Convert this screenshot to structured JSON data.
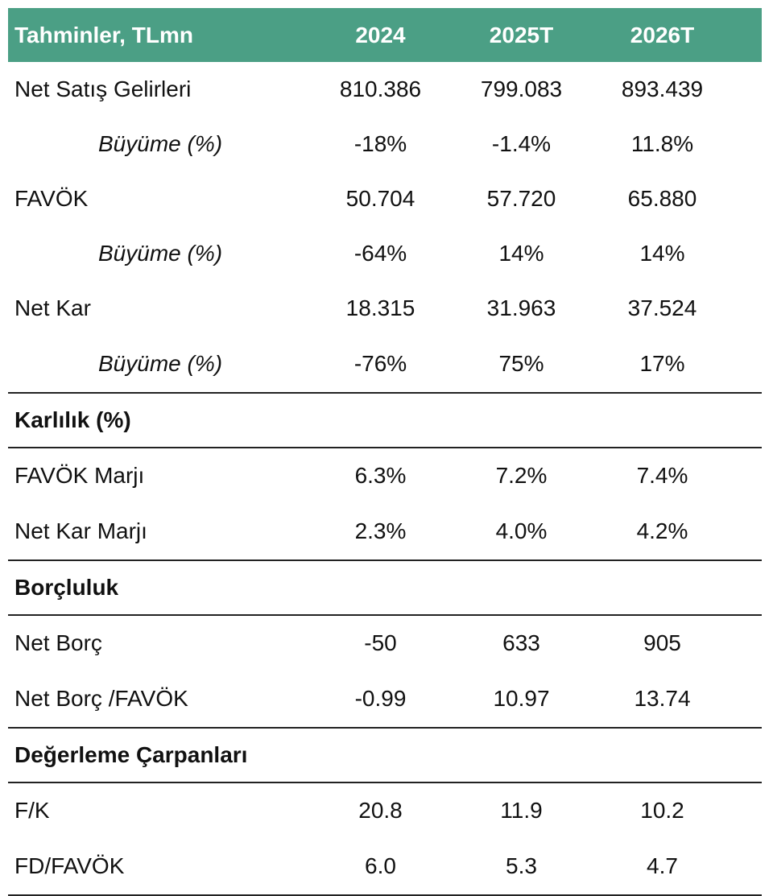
{
  "header": {
    "title": "Tahminler, TLmn",
    "columns": [
      "2024",
      "2025T",
      "2026T"
    ]
  },
  "sections": [
    {
      "title": "",
      "rows": [
        {
          "label": "Net Satış Gelirleri",
          "indent": false,
          "values": [
            "810.386",
            "799.083",
            "893.439"
          ]
        },
        {
          "label": "Büyüme (%)",
          "indent": true,
          "values": [
            "-18%",
            "-1.4%",
            "11.8%"
          ]
        },
        {
          "label": "FAVÖK",
          "indent": false,
          "values": [
            "50.704",
            "57.720",
            "65.880"
          ]
        },
        {
          "label": "Büyüme (%)",
          "indent": true,
          "values": [
            "-64%",
            "14%",
            "14%"
          ]
        },
        {
          "label": "Net Kar",
          "indent": false,
          "values": [
            "18.315",
            "31.963",
            "37.524"
          ]
        },
        {
          "label": "Büyüme (%)",
          "indent": true,
          "values": [
            "-76%",
            "75%",
            "17%"
          ]
        }
      ]
    },
    {
      "title": "Karlılık (%)",
      "rows": [
        {
          "label": "FAVÖK Marjı",
          "indent": false,
          "values": [
            "6.3%",
            "7.2%",
            "7.4%"
          ]
        },
        {
          "label": "Net Kar Marjı",
          "indent": false,
          "values": [
            "2.3%",
            "4.0%",
            "4.2%"
          ]
        }
      ]
    },
    {
      "title": "Borçluluk",
      "rows": [
        {
          "label": "Net Borç",
          "indent": false,
          "values": [
            "-50",
            "633",
            "905"
          ]
        },
        {
          "label": "Net Borç /FAVÖK",
          "indent": false,
          "values": [
            "-0.99",
            "10.97",
            "13.74"
          ]
        }
      ]
    },
    {
      "title": "Değerleme Çarpanları",
      "rows": [
        {
          "label": "F/K",
          "indent": false,
          "values": [
            "20.8",
            "11.9",
            "10.2"
          ]
        },
        {
          "label": "FD/FAVÖK",
          "indent": false,
          "values": [
            "6.0",
            "5.3",
            "4.7"
          ]
        }
      ]
    }
  ],
  "colors": {
    "header_bg": "#4b9f85",
    "header_text": "#ffffff"
  }
}
